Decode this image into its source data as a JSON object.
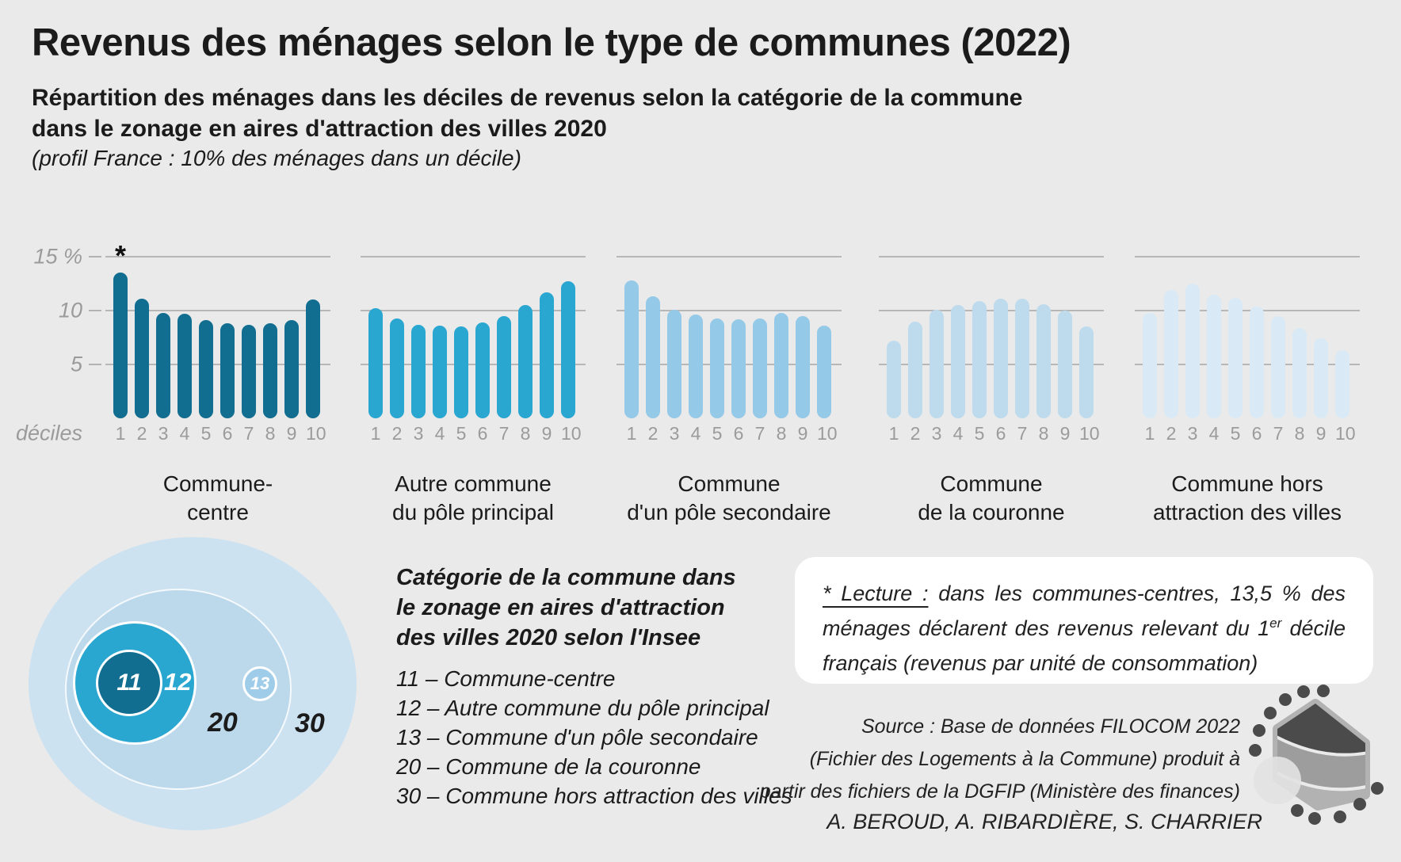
{
  "header": {
    "title": "Revenus des ménages selon le type de communes (2022)",
    "subtitle_line1": "Répartition des ménages dans les déciles de revenus selon la catégorie de la commune",
    "subtitle_line2": "dans le zonage en aires d'attraction des villes 2020",
    "profile_note": "(profil France : 10% des ménages dans un décile)"
  },
  "chart_data": {
    "type": "bar",
    "small_multiples": true,
    "title": "Répartition des ménages dans les déciles de revenus selon la catégorie de la commune",
    "x_axis_label": "déciles",
    "categories": [
      "1",
      "2",
      "3",
      "4",
      "5",
      "6",
      "7",
      "8",
      "9",
      "10"
    ],
    "y_ticks": [
      "15 %",
      "10",
      "5"
    ],
    "y_tick_values": [
      15,
      10,
      5
    ],
    "ylim": [
      0,
      15
    ],
    "grid": true,
    "unit_suffix": "%",
    "series": [
      {
        "name": "Commune-centre",
        "label_lines": [
          "Commune-",
          "centre"
        ],
        "color": "#116e90",
        "annotation": "*",
        "values": [
          13.5,
          11.1,
          9.8,
          9.7,
          9.1,
          8.8,
          8.7,
          8.8,
          9.1,
          11.0
        ]
      },
      {
        "name": "Autre commune du pôle principal",
        "label_lines": [
          "Autre commune",
          "du pôle principal"
        ],
        "color": "#2aa7d1",
        "values": [
          10.2,
          9.3,
          8.7,
          8.6,
          8.5,
          8.9,
          9.5,
          10.5,
          11.7,
          12.7
        ]
      },
      {
        "name": "Commune d'un pôle secondaire",
        "label_lines": [
          "Commune",
          "d'un pôle secondaire"
        ],
        "color": "#95c9e8",
        "values": [
          12.8,
          11.3,
          10.1,
          9.6,
          9.3,
          9.2,
          9.3,
          9.8,
          9.5,
          8.6
        ]
      },
      {
        "name": "Commune de la couronne",
        "label_lines": [
          "Commune",
          "de la couronne"
        ],
        "color": "#bedbee",
        "values": [
          7.2,
          9.0,
          10.1,
          10.5,
          10.9,
          11.1,
          11.1,
          10.6,
          10.0,
          8.5
        ]
      },
      {
        "name": "Commune hors attraction des villes",
        "label_lines": [
          "Commune hors",
          "attraction des villes"
        ],
        "color": "#d9eaf6",
        "values": [
          9.8,
          11.9,
          12.5,
          11.5,
          11.2,
          10.4,
          9.5,
          8.4,
          7.4,
          6.3
        ]
      }
    ]
  },
  "legend_diagram": {
    "labels": {
      "c11": "11",
      "c12": "12",
      "c13": "13",
      "c20": "20",
      "c30": "30"
    },
    "colors": {
      "c11": "#116e90",
      "c12": "#2aa7d1",
      "c13": "#9fcde9",
      "c20": "#bcd8eb",
      "c30": "#cde2f1"
    }
  },
  "legend_text": {
    "heading_line1": "Catégorie de la commune dans",
    "heading_line2": "le zonage en aires d'attraction",
    "heading_line3": "des villes 2020 selon l'Insee",
    "items": [
      "11 – Commune-centre",
      "12 – Autre commune du pôle principal",
      "13 – Commune d'un pôle secondaire",
      "20 – Commune de la couronne",
      "30 – Commune hors attraction des villes"
    ]
  },
  "lecture": {
    "label": "* Lecture :",
    "text1": " dans les communes-centres, 13,5 % des ménages déclarent des revenus relevant du 1",
    "sup": "er",
    "text2": " décile français (revenus par unité de consommation)"
  },
  "source": {
    "line1": "Source : Base de données FILOCOM 2022",
    "line2": "(Fichier des Logements à la Commune) produit à",
    "line3": "partir des fichiers de la DGFIP (Ministère des finances)",
    "authors": "A. BEROUD, A. RIBARDIÈRE, S. CHARRIER"
  },
  "colors": {
    "background": "#eaeaea",
    "gridline": "#b7b7b7",
    "axis_text": "#9b9b9b"
  }
}
